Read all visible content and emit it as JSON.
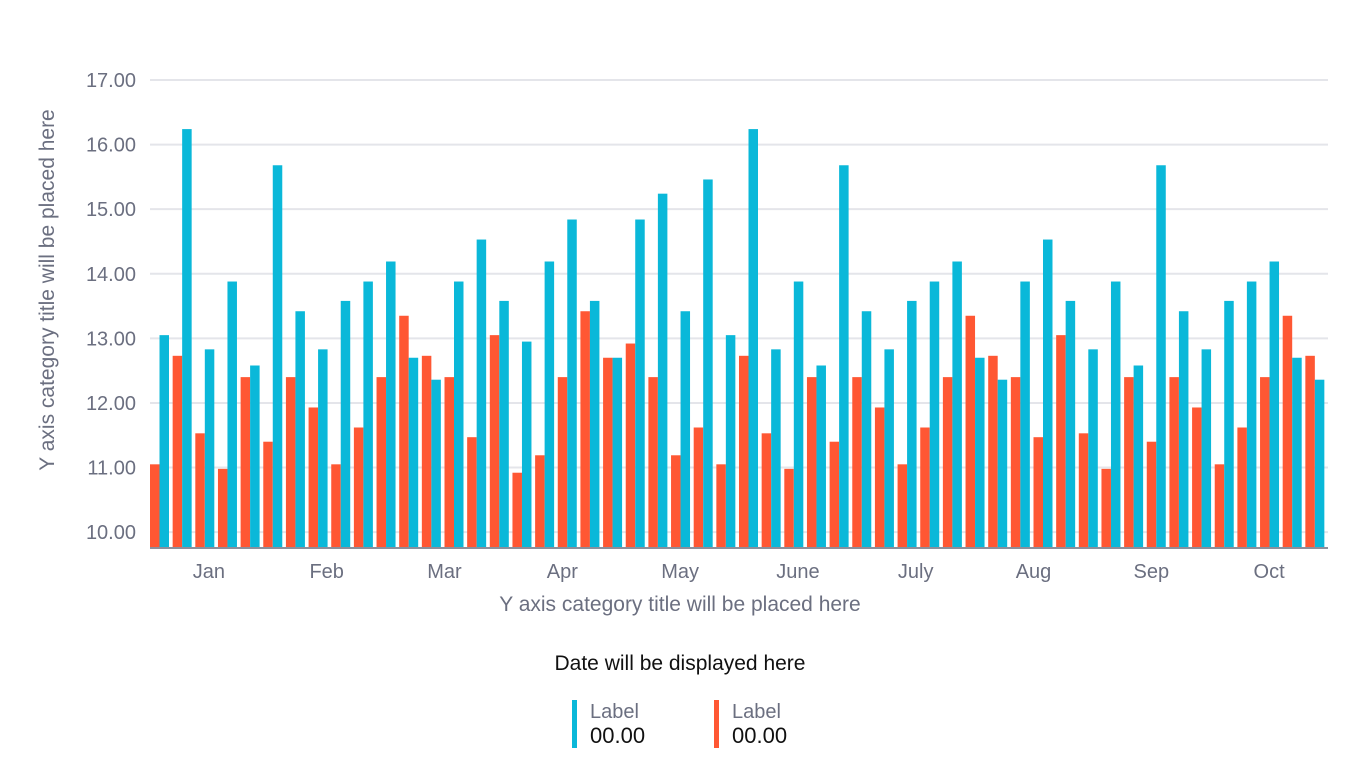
{
  "chart_data": {
    "type": "bar",
    "ylabel": "Y axis category title will be placed here",
    "xlabel": "Y axis category title will be placed here",
    "ylim": [
      9.77,
      17
    ],
    "yticks": [
      "10.00",
      "11.00",
      "12.00",
      "13.00",
      "14.00",
      "15.00",
      "16.00",
      "17.00"
    ],
    "month_labels": [
      "Jan",
      "Feb",
      "Mar",
      "Apr",
      "May",
      "June",
      "July",
      "Aug",
      "Sep",
      "Oct"
    ],
    "grid": true,
    "series": [
      {
        "color": "#ff5733",
        "values": [
          11.05,
          12.73,
          11.53,
          10.98,
          12.4,
          11.4,
          12.4,
          11.93,
          11.05,
          11.62,
          12.4,
          13.35,
          12.73,
          12.4,
          11.47,
          13.05,
          10.92,
          11.19,
          12.4,
          13.42,
          12.7,
          12.92,
          12.4,
          11.19,
          11.62,
          11.05,
          12.73,
          11.53,
          10.98,
          12.4,
          11.4,
          12.4,
          11.93,
          11.05,
          11.62,
          12.4,
          13.35,
          12.73,
          12.4,
          11.47,
          13.05,
          11.53,
          10.98,
          12.4,
          11.4,
          12.4,
          11.93,
          11.05,
          11.62,
          12.4,
          13.35,
          12.73
        ]
      },
      {
        "color": "#0ab8d9",
        "values": [
          13.05,
          16.24,
          12.83,
          13.88,
          12.58,
          15.68,
          13.42,
          12.83,
          13.58,
          13.88,
          14.19,
          12.7,
          12.36,
          13.88,
          14.53,
          13.58,
          12.95,
          14.19,
          14.84,
          13.58,
          12.7,
          14.84,
          15.24,
          13.42,
          15.46,
          13.05,
          16.24,
          12.83,
          13.88,
          12.58,
          15.68,
          13.42,
          12.83,
          13.58,
          13.88,
          14.19,
          12.7,
          12.36,
          13.88,
          14.53,
          13.58,
          12.83,
          13.88,
          12.58,
          15.68,
          13.42,
          12.83,
          13.58,
          13.88,
          14.19,
          12.7,
          12.36
        ]
      }
    ]
  },
  "date_text": "Date will be displayed here",
  "legend": [
    {
      "label": "Label",
      "value": "00.00",
      "color": "#0ab8d9"
    },
    {
      "label": "Label",
      "value": "00.00",
      "color": "#ff5733"
    }
  ]
}
